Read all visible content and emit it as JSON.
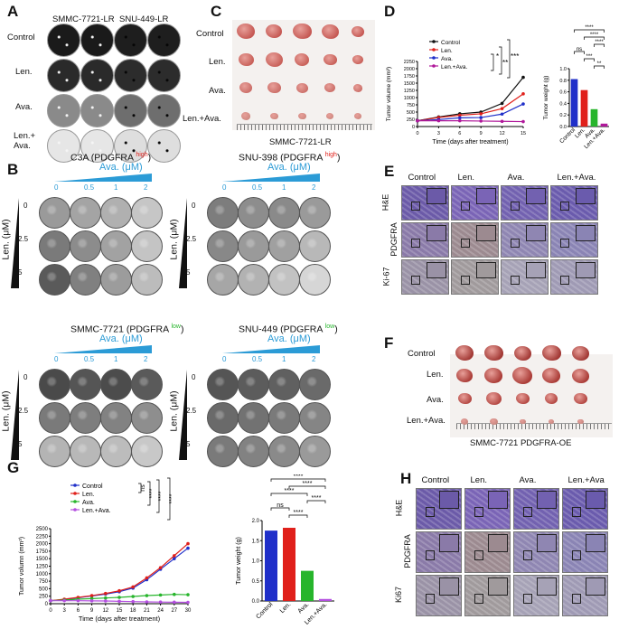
{
  "panels": {
    "A": "A",
    "B": "B",
    "C": "C",
    "D": "D",
    "E": "E",
    "F": "F",
    "G": "G",
    "H": "H"
  },
  "panelA": {
    "columns": [
      "SMMC-7721-LR",
      "SNU-449-LR"
    ],
    "rows": [
      "Control",
      "Len.",
      "Ava.",
      "Len.+\nAva."
    ]
  },
  "panelB": {
    "blocks": [
      {
        "line": "C3A (PDGFRA ",
        "level": "high"
      },
      {
        "line": "SNU-398 (PDGFRA ",
        "level": "high"
      },
      {
        "line": "SMMC-7721 (PDGFRA ",
        "level": "low"
      },
      {
        "line": "SNU-449 (PDGFRA ",
        "level": "low"
      }
    ],
    "close_paren": ")",
    "ava_label": "Ava. (μM)",
    "len_label": "Len. (μM)",
    "ava_doses": [
      "0",
      "0.5",
      "1",
      "2"
    ],
    "len_doses": [
      "0",
      "2.5",
      "5"
    ]
  },
  "panelC": {
    "rows": [
      "Control",
      "Len.",
      "Ava.",
      "Len.+Ava."
    ],
    "caption": "SMMC-7721-LR"
  },
  "panelD": {
    "legend": [
      "Control",
      "Len.",
      "Ava.",
      "Len.+Ava."
    ],
    "sig": [
      "*",
      "**",
      "***"
    ],
    "bar_sig": [
      "****",
      "****",
      "****",
      "ns",
      "***",
      "**"
    ]
  },
  "panelE": {
    "columns": [
      "Control",
      "Len.",
      "Ava.",
      "Len.+Ava."
    ],
    "rows": [
      "H&E",
      "PDGFRA",
      "Ki-67"
    ]
  },
  "panelF": {
    "rows": [
      "Control",
      "Len.",
      "Ava.",
      "Len.+Ava."
    ],
    "caption": "SMMC-7721 PDGFRA-OE"
  },
  "panelG": {
    "legend": [
      "Control",
      "Len.",
      "Ava.",
      "Len.+Ava."
    ],
    "sig": [
      "ns",
      "****",
      "****",
      "****"
    ],
    "bar_sig": [
      "****",
      "****",
      "****",
      "****",
      "ns",
      "****"
    ]
  },
  "panelH": {
    "columns": [
      "Control",
      "Len.",
      "Ava.",
      "Len.+Ava"
    ],
    "rows": [
      "H&E",
      "PDGFRA",
      "Ki67"
    ]
  },
  "colors": {
    "control": "#111111",
    "len": "#e0201b",
    "ava": "#1f2fc9",
    "combo": "#b0189a",
    "g_ava": "#27b52c",
    "g_combo": "#b44fe0",
    "sky": "#2b9bd6"
  },
  "chart_data": [
    {
      "id": "D-line",
      "type": "line",
      "xlabel": "Time (days after treatment)",
      "ylabel": "Tumor volume (mm³)",
      "x": [
        0,
        3,
        6,
        9,
        12,
        15
      ],
      "xlim": [
        0,
        15
      ],
      "ylim": [
        0,
        2250
      ],
      "yticks": [
        0,
        250,
        500,
        750,
        1000,
        1250,
        1500,
        1750,
        2000,
        2250
      ],
      "series": [
        {
          "name": "Control",
          "values": [
            200,
            330,
            440,
            500,
            800,
            1700
          ]
        },
        {
          "name": "Len.",
          "values": [
            200,
            310,
            390,
            440,
            620,
            1130
          ]
        },
        {
          "name": "Ava.",
          "values": [
            200,
            240,
            300,
            310,
            430,
            780
          ]
        },
        {
          "name": "Len.+Ava.",
          "values": [
            200,
            200,
            200,
            190,
            180,
            170
          ]
        }
      ]
    },
    {
      "id": "D-bar",
      "type": "bar",
      "ylabel": "Tumor weight (g)",
      "ylim": [
        0,
        1.0
      ],
      "yticks": [
        "0.0",
        "0.2",
        "0.4",
        "0.6",
        "0.8",
        "1.0"
      ],
      "categories": [
        "Control",
        "Len.",
        "Ava.",
        "Len.+Ava."
      ],
      "values": [
        0.82,
        0.63,
        0.3,
        0.05
      ]
    },
    {
      "id": "G-line",
      "type": "line",
      "xlabel": "Time (days after treatment)",
      "ylabel": "Tumor volumn (mm³)",
      "x": [
        0,
        3,
        6,
        9,
        12,
        15,
        18,
        21,
        24,
        27,
        30
      ],
      "xlim": [
        0,
        30
      ],
      "ylim": [
        0,
        2500
      ],
      "yticks": [
        0,
        250,
        500,
        750,
        1000,
        1250,
        1500,
        1750,
        2000,
        2250,
        2500
      ],
      "series": [
        {
          "name": "Control",
          "values": [
            100,
            140,
            200,
            260,
            320,
            400,
            520,
            800,
            1150,
            1500,
            1850
          ]
        },
        {
          "name": "Len.",
          "values": [
            100,
            150,
            210,
            270,
            340,
            430,
            560,
            860,
            1200,
            1600,
            2000
          ]
        },
        {
          "name": "Ava.",
          "values": [
            100,
            120,
            150,
            170,
            190,
            210,
            240,
            270,
            290,
            310,
            300
          ]
        },
        {
          "name": "Len.+Ava.",
          "values": [
            100,
            100,
            100,
            95,
            90,
            80,
            70,
            60,
            55,
            50,
            45
          ]
        }
      ]
    },
    {
      "id": "G-bar",
      "type": "bar",
      "ylabel": "Tumor weight (g)",
      "ylim": [
        0,
        2.0
      ],
      "yticks": [
        "0.0",
        "0.5",
        "1.0",
        "1.5",
        "2.0"
      ],
      "categories": [
        "Control",
        "Len.",
        "Ava.",
        "Len.+Ava."
      ],
      "values": [
        1.75,
        1.82,
        0.75,
        0.05
      ]
    }
  ]
}
